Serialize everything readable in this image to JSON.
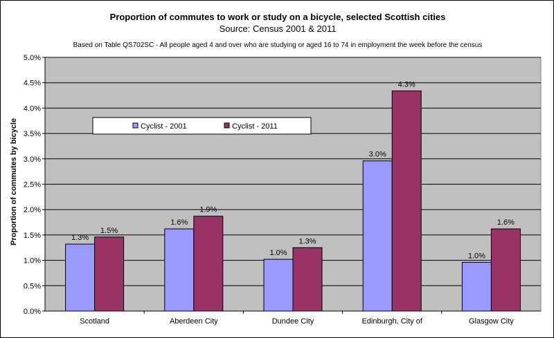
{
  "chart_data": {
    "type": "bar",
    "title": "Proportion of commutes to work or study on a bicycle, selected Scottish cities",
    "subtitle": "Source: Census 2001 & 2011",
    "note": "Based on Table QS702SC - All people aged 4 and over who are studying or aged 16 to 74 in employment the week before the census",
    "xlabel": "",
    "ylabel": "Proportion of commutes by bicycle",
    "categories": [
      "Scotland",
      "Aberdeen City",
      "Dundee City",
      "Edinburgh, City of",
      "Glasgow City"
    ],
    "series": [
      {
        "name": "Cyclist - 2001",
        "color": "#9999ff",
        "values": [
          1.32,
          1.62,
          1.02,
          2.96,
          0.96
        ],
        "labels": [
          "1.3%",
          "1.6%",
          "1.0%",
          "3.0%",
          "1.0%"
        ]
      },
      {
        "name": "Cyclist - 2011",
        "color": "#993366",
        "values": [
          1.46,
          1.87,
          1.25,
          4.34,
          1.62
        ],
        "labels": [
          "1.5%",
          "1.9%",
          "1.3%",
          "4.3%",
          "1.6%"
        ]
      }
    ],
    "ylim": [
      0,
      5
    ],
    "yticks": [
      0,
      0.5,
      1,
      1.5,
      2,
      2.5,
      3,
      3.5,
      4,
      4.5,
      5
    ],
    "ytick_labels": [
      "0.0%",
      "0.5%",
      "1.0%",
      "1.5%",
      "2.0%",
      "2.5%",
      "3.0%",
      "3.5%",
      "4.0%",
      "4.5%",
      "5.0%"
    ],
    "grid": true,
    "legend_position": "inside-upper-left",
    "plot_background": "#c0c0c0"
  }
}
